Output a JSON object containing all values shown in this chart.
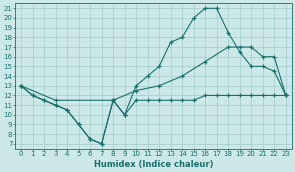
{
  "xlabel": "Humidex (Indice chaleur)",
  "bg_color": "#cce8e8",
  "grid_color": "#aad0d0",
  "line_color": "#1a6e6e",
  "xlim": [
    -0.5,
    23.5
  ],
  "ylim": [
    6.5,
    21.5
  ],
  "xticks": [
    0,
    1,
    2,
    3,
    4,
    5,
    6,
    7,
    8,
    9,
    10,
    11,
    12,
    13,
    14,
    15,
    16,
    17,
    18,
    19,
    20,
    21,
    22,
    23
  ],
  "yticks": [
    7,
    8,
    9,
    10,
    11,
    12,
    13,
    14,
    15,
    16,
    17,
    18,
    19,
    20,
    21
  ],
  "line_wavy_x": [
    0,
    1,
    2,
    3,
    4,
    5,
    6,
    7,
    8,
    9,
    10,
    11,
    12,
    13,
    14,
    15,
    16,
    17,
    18,
    19,
    20,
    21,
    22,
    23
  ],
  "line_wavy_y": [
    13,
    12,
    11.5,
    11,
    10.5,
    9,
    7.5,
    7,
    11.5,
    10,
    11.5,
    11.5,
    11.5,
    11.5,
    11.5,
    11.5,
    12,
    12,
    12,
    12,
    12,
    12,
    12,
    12
  ],
  "line_arch_x": [
    0,
    1,
    2,
    3,
    4,
    5,
    6,
    7,
    8,
    9,
    10,
    11,
    12,
    13,
    14,
    15,
    16,
    17,
    18,
    19,
    20,
    21,
    22,
    23
  ],
  "line_arch_y": [
    13,
    12,
    11.5,
    11,
    10.5,
    9,
    7.5,
    7,
    11.5,
    10,
    13,
    14,
    15,
    17.5,
    18,
    20,
    21,
    21,
    18.5,
    16.5,
    15,
    15,
    14.5,
    12
  ],
  "line_diag_x": [
    0,
    3,
    8,
    10,
    12,
    14,
    16,
    18,
    19,
    20,
    21,
    22,
    23
  ],
  "line_diag_y": [
    13,
    11.5,
    11.5,
    12.5,
    13,
    14,
    15.5,
    17,
    17,
    17,
    16,
    16,
    12
  ]
}
